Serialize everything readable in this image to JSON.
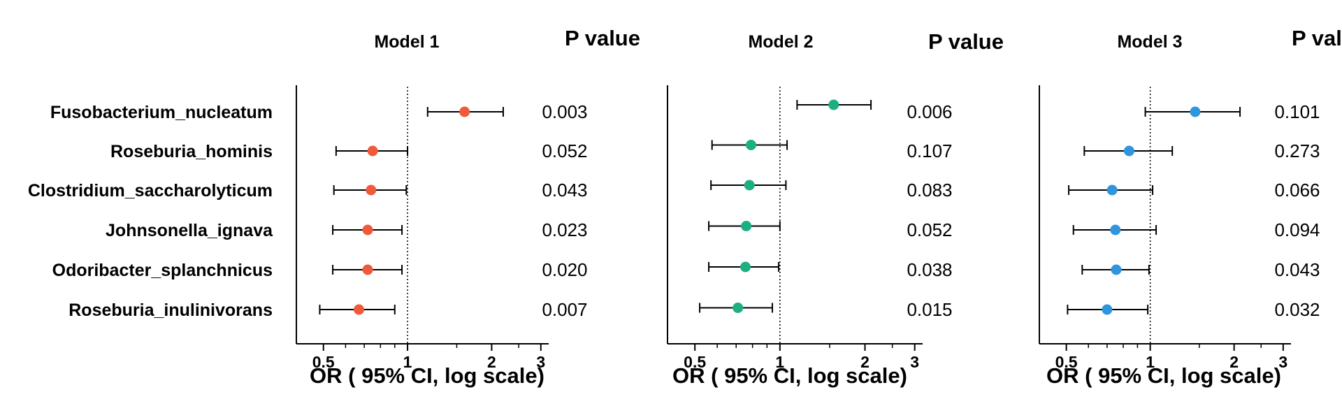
{
  "pvalue_header": "P value",
  "chart_data": [
    {
      "type": "forest",
      "title": "Model 1",
      "xlabel": "OR ( 95% CI, log scale)",
      "xscale": "log",
      "xlim": [
        0.4,
        3.2
      ],
      "xticks": [
        "0.5",
        "1",
        "2",
        "3"
      ],
      "reference_line": 1,
      "marker_color": "#F05A3A",
      "rows": [
        {
          "name": "Fusobacterium_nucleatum",
          "or": 1.6,
          "lo": 1.18,
          "hi": 2.2,
          "p": "0.003"
        },
        {
          "name": "Roseburia_hominis",
          "or": 0.75,
          "lo": 0.555,
          "hi": 1.0,
          "p": "0.052"
        },
        {
          "name": "Clostridium_saccharolyticum",
          "or": 0.74,
          "lo": 0.545,
          "hi": 0.99,
          "p": "0.043"
        },
        {
          "name": "Johnsonella_ignava",
          "or": 0.72,
          "lo": 0.54,
          "hi": 0.955,
          "p": "0.023"
        },
        {
          "name": "Odoribacter_splanchnicus",
          "or": 0.72,
          "lo": 0.54,
          "hi": 0.955,
          "p": "0.020"
        },
        {
          "name": "Roseburia_inulinivorans",
          "or": 0.67,
          "lo": 0.485,
          "hi": 0.9,
          "p": "0.007"
        }
      ]
    },
    {
      "type": "forest",
      "title": "Model 2",
      "xlabel": "OR ( 95% CI, log scale)",
      "xscale": "log",
      "xlim": [
        0.4,
        3.2
      ],
      "xticks": [
        "0.5",
        "1",
        "2",
        "3"
      ],
      "reference_line": 1,
      "marker_color": "#1DAE82",
      "rows": [
        {
          "name": "Fusobacterium_nucleatum",
          "or": 1.55,
          "lo": 1.15,
          "hi": 2.1,
          "p": "0.006"
        },
        {
          "name": "Roseburia_hominis",
          "or": 0.79,
          "lo": 0.575,
          "hi": 1.06,
          "p": "0.107"
        },
        {
          "name": "Clostridium_saccharolyticum",
          "or": 0.78,
          "lo": 0.57,
          "hi": 1.05,
          "p": "0.083"
        },
        {
          "name": "Johnsonella_ignava",
          "or": 0.76,
          "lo": 0.56,
          "hi": 1.0,
          "p": "0.052"
        },
        {
          "name": "Odoribacter_splanchnicus",
          "or": 0.755,
          "lo": 0.56,
          "hi": 0.99,
          "p": "0.038"
        },
        {
          "name": "Roseburia_inulinivorans",
          "or": 0.71,
          "lo": 0.52,
          "hi": 0.94,
          "p": "0.015"
        }
      ]
    },
    {
      "type": "forest",
      "title": "Model 3",
      "xlabel": "OR ( 95% CI, log scale)",
      "xscale": "log",
      "xlim": [
        0.4,
        3.2
      ],
      "xticks": [
        "0.5",
        "1",
        "2",
        "3"
      ],
      "reference_line": 1,
      "marker_color": "#2E95DE",
      "rows": [
        {
          "name": "Fusobacterium_nucleatum",
          "or": 1.45,
          "lo": 0.96,
          "hi": 2.1,
          "p": "0.101"
        },
        {
          "name": "Roseburia_hominis",
          "or": 0.84,
          "lo": 0.58,
          "hi": 1.2,
          "p": "0.273"
        },
        {
          "name": "Clostridium_saccharolyticum",
          "or": 0.73,
          "lo": 0.51,
          "hi": 1.02,
          "p": "0.066"
        },
        {
          "name": "Johnsonella_ignava",
          "or": 0.75,
          "lo": 0.53,
          "hi": 1.05,
          "p": "0.094"
        },
        {
          "name": "Odoribacter_splanchnicus",
          "or": 0.755,
          "lo": 0.57,
          "hi": 0.99,
          "p": "0.043"
        },
        {
          "name": "Roseburia_inulinivorans",
          "or": 0.7,
          "lo": 0.505,
          "hi": 0.98,
          "p": "0.032"
        }
      ]
    }
  ]
}
